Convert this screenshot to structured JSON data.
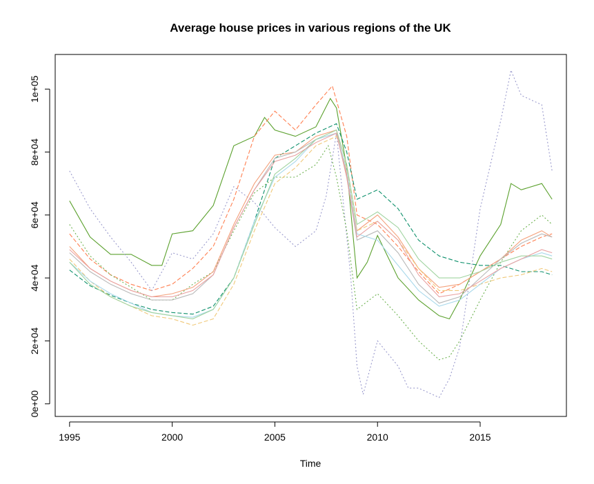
{
  "chart_data": {
    "type": "line",
    "title": "Average house prices in various regions of the UK",
    "xlabel": "Time",
    "ylabel": "",
    "xlim": [
      1994.3,
      2019.2
    ],
    "ylim": [
      -4000,
      111000
    ],
    "x_ticks": [
      1995,
      2000,
      2005,
      2010,
      2015
    ],
    "x_tick_labels": [
      "1995",
      "2000",
      "2005",
      "2010",
      "2015"
    ],
    "y_ticks": [
      0,
      20000,
      40000,
      60000,
      80000,
      100000
    ],
    "y_tick_labels": [
      "0e+00",
      "2e+04",
      "4e+04",
      "6e+04",
      "8e+04",
      "1e+05"
    ],
    "grid": false,
    "legend": "none",
    "series": [
      {
        "color": "#5aa02c",
        "dash": "",
        "x": [
          1995,
          1996,
          1997,
          1998,
          1999,
          1999.5,
          2000,
          2001,
          2002,
          2003,
          2004,
          2004.5,
          2005,
          2006,
          2007,
          2007.7,
          2008,
          2008.5,
          2009,
          2009.5,
          2010,
          2011,
          2012,
          2013,
          2013.5,
          2014,
          2015,
          2016,
          2016.5,
          2017,
          2018,
          2018.5
        ],
        "values": [
          64500,
          53000,
          47500,
          47500,
          44000,
          44000,
          54000,
          55000,
          63000,
          82000,
          85000,
          91000,
          87000,
          85000,
          88000,
          97000,
          94000,
          75000,
          40000,
          45000,
          53500,
          40000,
          33000,
          28000,
          27000,
          33000,
          47000,
          57000,
          70000,
          68000,
          70000,
          65000
        ]
      },
      {
        "color": "#ff7f50",
        "dash": "6,3",
        "x": [
          1995,
          1996,
          1997,
          1998,
          1999,
          2000,
          2001,
          2002,
          2003,
          2004,
          2005,
          2006,
          2007,
          2007.8,
          2008.5,
          2009,
          2010,
          2011,
          2012,
          2013,
          2014,
          2015,
          2016,
          2017,
          2018,
          2018.5
        ],
        "values": [
          54000,
          46000,
          41000,
          38000,
          36000,
          38000,
          43000,
          50000,
          65000,
          85000,
          93000,
          87000,
          95000,
          101000,
          85000,
          60000,
          57000,
          50000,
          42000,
          35000,
          38000,
          42000,
          46000,
          50000,
          53000,
          54000
        ]
      },
      {
        "color": "#0b8f6a",
        "dash": "6,3",
        "x": [
          1995,
          1996,
          1997,
          1998,
          1999,
          2000,
          2001,
          2002,
          2003,
          2004,
          2005,
          2006,
          2007,
          2008,
          2008.5,
          2009,
          2010,
          2011,
          2012,
          2013,
          2014,
          2015,
          2016,
          2017,
          2018,
          2018.5
        ],
        "values": [
          42500,
          37500,
          34500,
          32000,
          30000,
          29000,
          28500,
          31000,
          40000,
          58000,
          78000,
          82000,
          86000,
          89000,
          80000,
          65000,
          68000,
          62000,
          52000,
          47000,
          45000,
          44000,
          44000,
          42000,
          42000,
          41000
        ]
      },
      {
        "color": "#9999cc",
        "dash": "2,3",
        "x": [
          1995,
          1996,
          1997,
          1998,
          1999,
          2000,
          2001,
          2002,
          2003,
          2004,
          2005,
          2006,
          2007,
          2007.5,
          2008,
          2008.7,
          2009,
          2009.3,
          2010,
          2011,
          2011.5,
          2012,
          2013,
          2013.5,
          2014,
          2015,
          2016,
          2016.5,
          2017,
          2018,
          2018.5
        ],
        "values": [
          74000,
          62000,
          53000,
          45000,
          36000,
          48000,
          46000,
          54000,
          69000,
          64000,
          56000,
          50000,
          55000,
          66000,
          86000,
          40000,
          12000,
          3000,
          20000,
          12000,
          5000,
          5000,
          2000,
          8000,
          18000,
          62000,
          90000,
          106000,
          98000,
          95000,
          74000
        ]
      },
      {
        "color": "#6ab04c",
        "dash": "2,3",
        "x": [
          1995,
          1996,
          1997,
          1998,
          1999,
          2000,
          2001,
          2002,
          2003,
          2004,
          2005,
          2006,
          2007,
          2007.6,
          2008,
          2008.5,
          2009,
          2010,
          2011,
          2012,
          2013,
          2013.5,
          2014,
          2015,
          2016,
          2017,
          2018,
          2018.5
        ],
        "values": [
          57000,
          47000,
          41000,
          37000,
          33000,
          33000,
          38000,
          42000,
          55000,
          67000,
          72000,
          72000,
          76000,
          82000,
          72000,
          55000,
          30000,
          35000,
          28000,
          20000,
          14000,
          15000,
          20000,
          33000,
          45000,
          55000,
          60000,
          57000
        ]
      },
      {
        "color": "#f4a07a",
        "dash": "",
        "x": [
          1995,
          1996,
          1997,
          1998,
          1999,
          2000,
          2001,
          2002,
          2003,
          2004,
          2005,
          2006,
          2007,
          2008,
          2008.5,
          2009,
          2010,
          2011,
          2012,
          2013,
          2014,
          2015,
          2016,
          2017,
          2018,
          2018.5
        ],
        "values": [
          50000,
          43000,
          39000,
          36000,
          34000,
          35000,
          37000,
          42000,
          57000,
          70000,
          79000,
          80000,
          85000,
          87000,
          73000,
          55000,
          60000,
          53000,
          43000,
          37000,
          38000,
          42000,
          46000,
          52000,
          55000,
          53000
        ]
      },
      {
        "color": "#b8b8b8",
        "dash": "",
        "x": [
          1995,
          1996,
          1997,
          1998,
          1999,
          2000,
          2001,
          2002,
          2003,
          2004,
          2005,
          2006,
          2007,
          2008,
          2008.5,
          2009,
          2010,
          2011,
          2012,
          2013,
          2014,
          2015,
          2016,
          2017,
          2018,
          2018.5
        ],
        "values": [
          48000,
          42000,
          38000,
          35000,
          33000,
          33000,
          35000,
          41000,
          56000,
          68000,
          78000,
          80000,
          84000,
          86000,
          72000,
          52000,
          55000,
          48000,
          38000,
          32000,
          34000,
          40000,
          46000,
          51000,
          54000,
          53000
        ]
      },
      {
        "color": "#f0c878",
        "dash": "6,3",
        "x": [
          1995,
          1996,
          1997,
          1998,
          1999,
          2000,
          2001,
          2002,
          2003,
          2004,
          2005,
          2006,
          2007,
          2008,
          2008.5,
          2009,
          2010,
          2011,
          2012,
          2013,
          2014,
          2015,
          2016,
          2017,
          2018,
          2018.5
        ],
        "values": [
          46000,
          39000,
          34000,
          31000,
          28000,
          27000,
          25000,
          27000,
          38000,
          55000,
          70000,
          75000,
          82000,
          85000,
          75000,
          55000,
          58000,
          52000,
          43000,
          36000,
          36000,
          38000,
          40000,
          41000,
          43000,
          42000
        ]
      },
      {
        "color": "#a8d8ea",
        "dash": "",
        "x": [
          1995,
          1996,
          1997,
          1998,
          1999,
          2000,
          2001,
          2002,
          2003,
          2004,
          2005,
          2006,
          2007,
          2008,
          2008.5,
          2009,
          2010,
          2011,
          2012,
          2013,
          2014,
          2015,
          2016,
          2017,
          2018,
          2018.5
        ],
        "values": [
          45000,
          39000,
          35000,
          32000,
          29000,
          28000,
          27500,
          30000,
          40000,
          58000,
          72000,
          77000,
          84000,
          86000,
          74000,
          54000,
          52000,
          44000,
          36000,
          31000,
          33000,
          38000,
          43000,
          46000,
          48000,
          47000
        ]
      },
      {
        "color": "#9fd39f",
        "dash": "",
        "x": [
          1995,
          1996,
          1997,
          1998,
          1999,
          2000,
          2001,
          2002,
          2003,
          2004,
          2005,
          2006,
          2007,
          2008,
          2008.5,
          2009,
          2010,
          2011,
          2012,
          2013,
          2014,
          2015,
          2016,
          2017,
          2018,
          2018.5
        ],
        "values": [
          45000,
          38000,
          34000,
          31000,
          29000,
          28000,
          27000,
          30000,
          40000,
          57000,
          73000,
          78000,
          84000,
          87000,
          76000,
          57000,
          61000,
          56000,
          46000,
          40000,
          40000,
          42000,
          45000,
          47000,
          47000,
          46000
        ]
      },
      {
        "color": "#e8a0a0",
        "dash": "",
        "x": [
          1995,
          1996,
          1997,
          1998,
          1999,
          2000,
          2001,
          2002,
          2003,
          2004,
          2005,
          2006,
          2007,
          2008,
          2008.5,
          2009,
          2010,
          2011,
          2012,
          2013,
          2014,
          2015,
          2016,
          2017,
          2018,
          2018.5
        ],
        "values": [
          49000,
          43000,
          39000,
          36000,
          34000,
          34000,
          36000,
          41000,
          56000,
          68000,
          77000,
          79000,
          83000,
          86000,
          72000,
          53000,
          58000,
          52000,
          41000,
          34000,
          35000,
          39000,
          43000,
          46000,
          49000,
          48000
        ]
      }
    ]
  }
}
